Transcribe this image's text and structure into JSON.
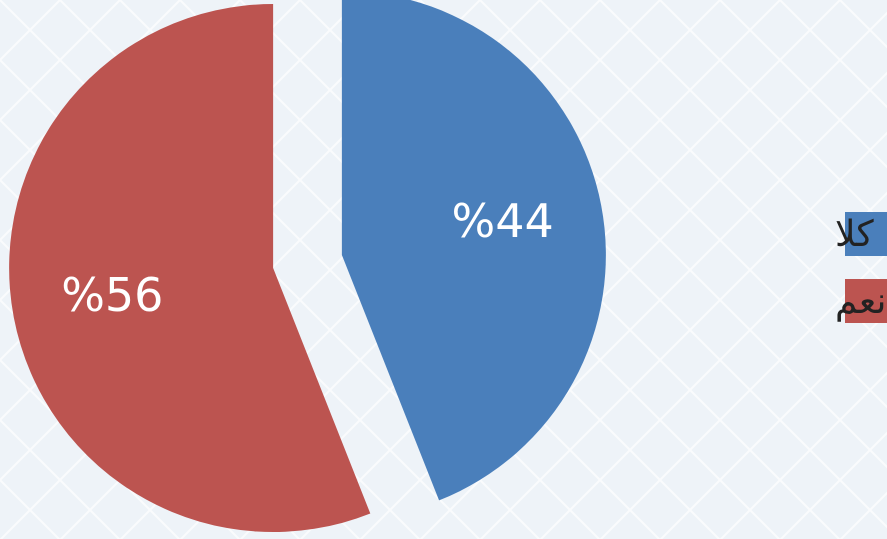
{
  "chart_data": {
    "type": "pie",
    "categories": [
      "كلا",
      "نعم"
    ],
    "values": [
      44,
      56
    ],
    "value_labels": [
      "%44",
      "%56"
    ],
    "colors": [
      "#4a7fbb",
      "#bc5450"
    ],
    "legend": "right"
  }
}
